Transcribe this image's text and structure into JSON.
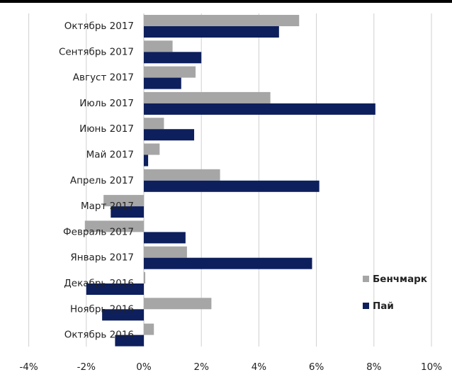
{
  "chart_data": {
    "type": "bar",
    "orientation": "horizontal",
    "categories": [
      "Октябрь 2017",
      "Сентябрь 2017",
      "Август 2017",
      "Июль 2017",
      "Июнь 2017",
      "Май 2017",
      "Апрель 2017",
      "Март 2017",
      "Февраль 2017",
      "Январь 2017",
      "Декабрь 2016",
      "Ноябрь 2016",
      "Октябрь 2016"
    ],
    "series": [
      {
        "name": "Бенчмарк",
        "color": "#a6a6a6",
        "values": [
          5.4,
          1.0,
          1.8,
          4.4,
          0.7,
          0.55,
          2.65,
          -1.4,
          -2.05,
          1.5,
          0.05,
          2.35,
          0.35
        ]
      },
      {
        "name": "Пай",
        "color": "#0d1f5c",
        "values": [
          4.7,
          2.0,
          1.3,
          8.05,
          1.75,
          0.15,
          6.1,
          -1.15,
          1.45,
          5.85,
          -2.0,
          -1.45,
          -1.0
        ]
      }
    ],
    "xlim": [
      -4,
      10
    ],
    "xticks": [
      "-4%",
      "-2%",
      "0%",
      "2%",
      "4%",
      "6%",
      "8%",
      "10%"
    ],
    "tick_values": [
      -4,
      -2,
      0,
      2,
      4,
      6,
      8,
      10
    ],
    "grid": "vertical",
    "legend": "right"
  }
}
